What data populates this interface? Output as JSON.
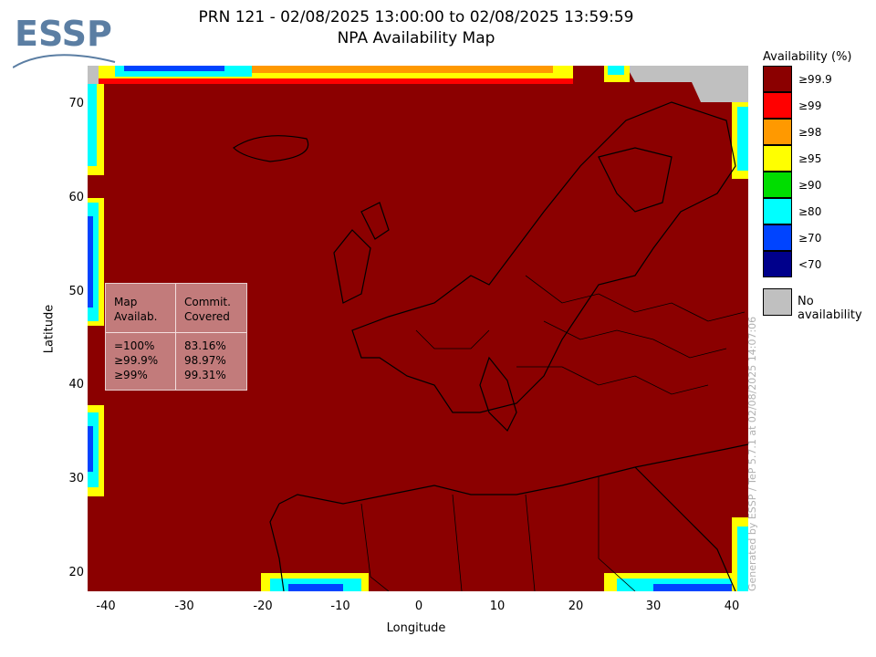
{
  "header": {
    "title_line1": "PRN 121 - 02/08/2025 13:00:00 to 02/08/2025 13:59:59",
    "title_line2": "NPA Availability Map"
  },
  "logo": {
    "text": "ESSP",
    "color": "#5b7ea3"
  },
  "axes": {
    "xlabel": "Longitude",
    "ylabel": "Latitude",
    "xticks": [
      "-40",
      "-30",
      "-20",
      "-10",
      "0",
      "10",
      "20",
      "30",
      "40"
    ],
    "yticks": [
      "70",
      "60",
      "50",
      "40",
      "30",
      "20"
    ],
    "xlim": [
      -42,
      42
    ],
    "ylim": [
      18,
      74
    ]
  },
  "legend": {
    "title": "Availability (%)",
    "items": [
      {
        "label": "≥99.9",
        "color": "#8b0000"
      },
      {
        "label": "≥99",
        "color": "#ff0000"
      },
      {
        "label": "≥98",
        "color": "#ff9900"
      },
      {
        "label": "≥95",
        "color": "#ffff00"
      },
      {
        "label": "≥90",
        "color": "#00dd00"
      },
      {
        "label": "≥80",
        "color": "#00ffff"
      },
      {
        "label": "≥70",
        "color": "#0044ff"
      },
      {
        "label": "<70",
        "color": "#00008b"
      }
    ],
    "no_availability": {
      "label": "No availability",
      "color": "#c0c0c0"
    }
  },
  "stats": {
    "col1_header": "Map\nAvailab.",
    "col2_header": "Commit.\nCovered",
    "rows": [
      {
        "map": "=100%",
        "covered": "83.16%"
      },
      {
        "map": "≥99.9%",
        "covered": "98.97%"
      },
      {
        "map": "≥99%",
        "covered": "99.31%"
      }
    ]
  },
  "watermark": "Generated by ESSP / TeP 5.7.1 at 02/08/2025 14:07:06"
}
